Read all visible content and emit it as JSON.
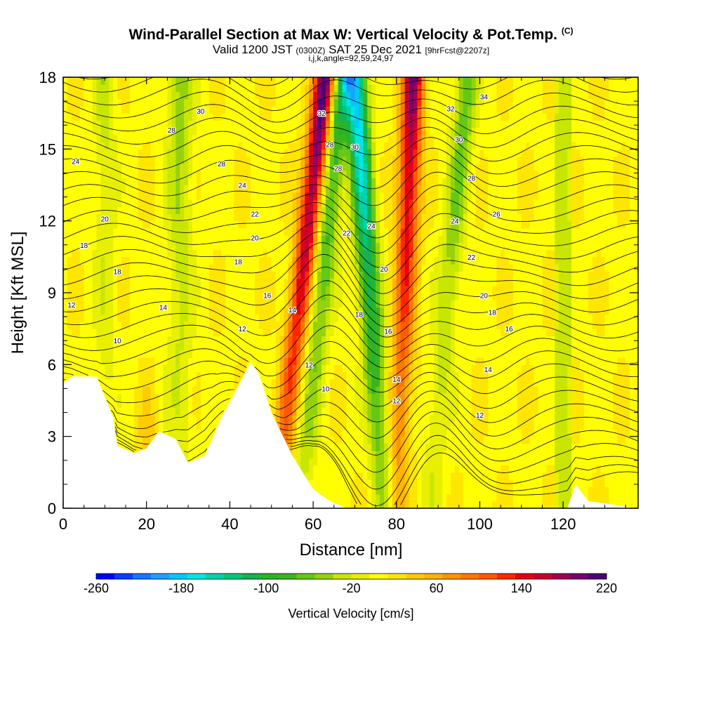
{
  "title": {
    "main": "Wind-Parallel Section at Max W: Vertical Velocity & Pot.Temp.",
    "copyright": "(C)",
    "valid_prefix": "Valid 1200 JST",
    "valid_utc": "(0300Z)",
    "valid_date": "SAT 25 Dec 2021",
    "forecast": "[9hrFcst@2207z]",
    "indices": "i,j,k,angle=92,59,24,97"
  },
  "colorbar": {
    "label": "Vertical Velocity [cm/s]",
    "min": -260,
    "max": 220,
    "step": 20,
    "ticks": [
      "-260",
      "-180",
      "-100",
      "-20",
      "60",
      "140",
      "220"
    ],
    "colors": [
      "#0000ff",
      "#0a3cff",
      "#1478ff",
      "#1ea0ff",
      "#00c8ff",
      "#00e6e6",
      "#00d2aa",
      "#00c878",
      "#14b450",
      "#28b428",
      "#3cb41e",
      "#64c814",
      "#96d20a",
      "#c8e600",
      "#e6f000",
      "#ffff00",
      "#ffe600",
      "#ffcc00",
      "#ffb400",
      "#ff9600",
      "#ff7800",
      "#ff5a00",
      "#ff2800",
      "#e60014",
      "#c80032",
      "#a00050",
      "#78006e",
      "#500078"
    ]
  },
  "chart_data": {
    "type": "heatmap",
    "title": "Wind-Parallel Section at Max W: Vertical Velocity & Pot.Temp.",
    "xlabel": "Distance [nm]",
    "ylabel": "Height [Kft MSL]",
    "xlim": [
      0,
      138
    ],
    "ylim": [
      0,
      18
    ],
    "xticks": [
      "0",
      "20",
      "40",
      "60",
      "80",
      "100",
      "120"
    ],
    "yticks": [
      "0",
      "3",
      "6",
      "9",
      "12",
      "15",
      "18"
    ],
    "fill_variable": "Vertical Velocity [cm/s]",
    "contour_variable": "Potential temperature",
    "vertical_velocity_bands": [
      {
        "x_at_top": 63,
        "x_at_bottom": 51,
        "peak": 220
      },
      {
        "x_at_top": 67,
        "x_at_bottom": 57,
        "peak": -120
      },
      {
        "x_at_top": 70,
        "x_at_bottom": 77,
        "peak": -200
      },
      {
        "x_at_top": 84,
        "x_at_bottom": 80,
        "peak": 180
      },
      {
        "x_at_top": 97,
        "x_at_bottom": 88,
        "peak": -80
      }
    ],
    "terrain_profile": [
      {
        "x": 0,
        "y": 5.2
      },
      {
        "x": 2,
        "y": 5.5
      },
      {
        "x": 8,
        "y": 5.5
      },
      {
        "x": 12,
        "y": 3.8
      },
      {
        "x": 13,
        "y": 2.6
      },
      {
        "x": 17,
        "y": 2.3
      },
      {
        "x": 20,
        "y": 2.5
      },
      {
        "x": 23,
        "y": 3.2
      },
      {
        "x": 27,
        "y": 2.9
      },
      {
        "x": 30,
        "y": 1.9
      },
      {
        "x": 34,
        "y": 2.2
      },
      {
        "x": 38,
        "y": 3.8
      },
      {
        "x": 42,
        "y": 5.1
      },
      {
        "x": 45,
        "y": 6.1
      },
      {
        "x": 47,
        "y": 5.6
      },
      {
        "x": 50,
        "y": 4.0
      },
      {
        "x": 55,
        "y": 2.2
      },
      {
        "x": 60,
        "y": 0.8
      },
      {
        "x": 64,
        "y": 0.3
      },
      {
        "x": 68,
        "y": 0
      },
      {
        "x": 121,
        "y": 0
      },
      {
        "x": 123,
        "y": 1.0
      },
      {
        "x": 126,
        "y": 0.3
      },
      {
        "x": 138,
        "y": 0
      }
    ],
    "contour_labels": [
      {
        "text": "34",
        "x": 101,
        "y": 17.2
      },
      {
        "text": "32",
        "x": 62,
        "y": 16.5
      },
      {
        "text": "32",
        "x": 93,
        "y": 16.7
      },
      {
        "text": "30",
        "x": 33,
        "y": 16.6
      },
      {
        "text": "30",
        "x": 70,
        "y": 15.1
      },
      {
        "text": "30",
        "x": 95,
        "y": 15.4
      },
      {
        "text": "28",
        "x": 26,
        "y": 15.8
      },
      {
        "text": "28",
        "x": 64,
        "y": 15.2
      },
      {
        "text": "28",
        "x": 66,
        "y": 14.2
      },
      {
        "text": "28",
        "x": 38,
        "y": 14.4
      },
      {
        "text": "28",
        "x": 98,
        "y": 13.8
      },
      {
        "text": "26",
        "x": 104,
        "y": 12.3
      },
      {
        "text": "24",
        "x": 3,
        "y": 14.5
      },
      {
        "text": "24",
        "x": 43,
        "y": 13.5
      },
      {
        "text": "24",
        "x": 74,
        "y": 11.8
      },
      {
        "text": "24",
        "x": 94,
        "y": 12.0
      },
      {
        "text": "22",
        "x": 46,
        "y": 12.3
      },
      {
        "text": "22",
        "x": 68,
        "y": 11.5
      },
      {
        "text": "22",
        "x": 98,
        "y": 10.5
      },
      {
        "text": "20",
        "x": 10,
        "y": 12.1
      },
      {
        "text": "20",
        "x": 46,
        "y": 11.3
      },
      {
        "text": "20",
        "x": 77,
        "y": 10.0
      },
      {
        "text": "20",
        "x": 101,
        "y": 8.9
      },
      {
        "text": "18",
        "x": 5,
        "y": 11.0
      },
      {
        "text": "18",
        "x": 13,
        "y": 9.9
      },
      {
        "text": "18",
        "x": 42,
        "y": 10.3
      },
      {
        "text": "18",
        "x": 71,
        "y": 8.1
      },
      {
        "text": "18",
        "x": 103,
        "y": 8.2
      },
      {
        "text": "16",
        "x": 49,
        "y": 8.9
      },
      {
        "text": "16",
        "x": 78,
        "y": 7.4
      },
      {
        "text": "16",
        "x": 107,
        "y": 7.5
      },
      {
        "text": "14",
        "x": 24,
        "y": 8.4
      },
      {
        "text": "14",
        "x": 55,
        "y": 8.3
      },
      {
        "text": "14",
        "x": 80,
        "y": 5.4
      },
      {
        "text": "14",
        "x": 102,
        "y": 5.8
      },
      {
        "text": "12",
        "x": 2,
        "y": 8.5
      },
      {
        "text": "12",
        "x": 43,
        "y": 7.5
      },
      {
        "text": "12",
        "x": 59,
        "y": 6.0
      },
      {
        "text": "12",
        "x": 80,
        "y": 4.5
      },
      {
        "text": "12",
        "x": 100,
        "y": 3.9
      },
      {
        "text": "10",
        "x": 13,
        "y": 7.0
      },
      {
        "text": "10",
        "x": 63,
        "y": 5.0
      }
    ]
  }
}
